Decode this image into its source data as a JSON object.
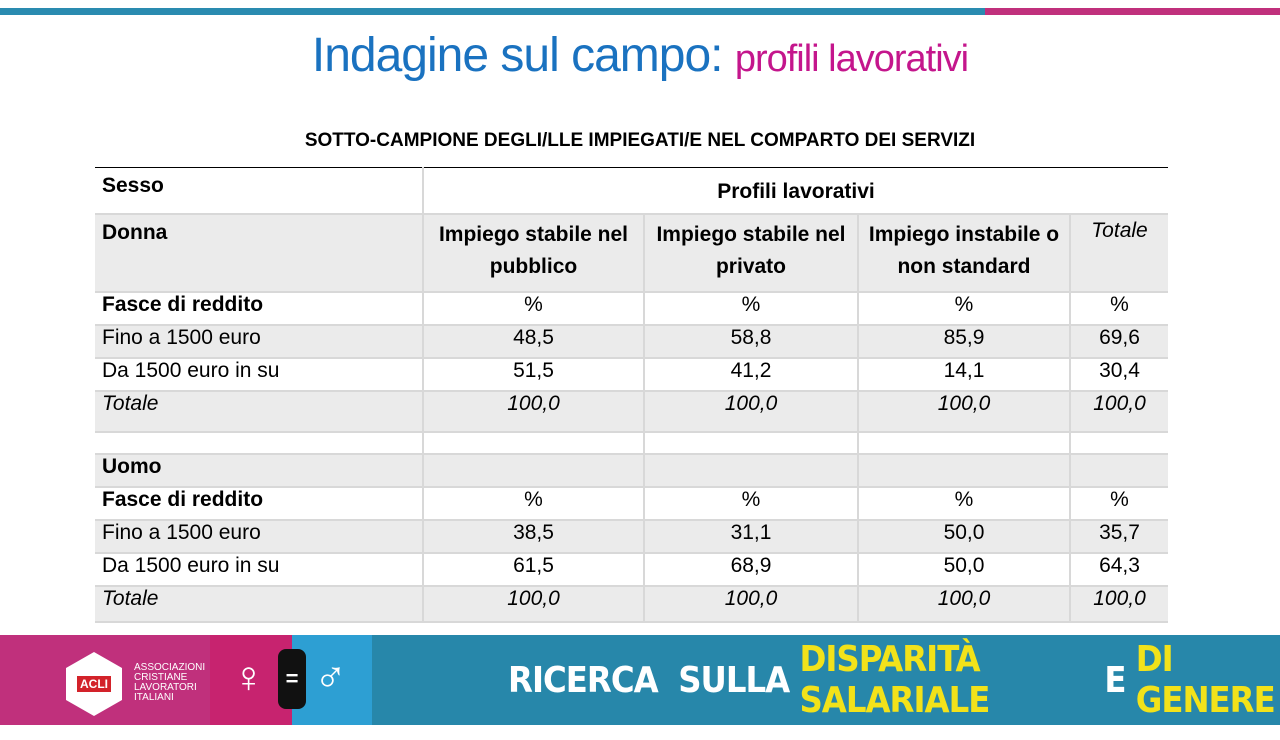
{
  "title": {
    "main": "Indagine sul campo:",
    "sub": "profili lavorativi"
  },
  "subtitle": "SOTTO-CAMPIONE DEGLI/LLE IMPIEGATI/E NEL COMPARTO DEI SERVIZI",
  "table": {
    "sesso_label": "Sesso",
    "group_header": "Profili lavorativi",
    "donna_label": "Donna",
    "uomo_label": "Uomo",
    "columns": [
      "Impiego stabile nel pubblico",
      "Impiego stabile nel privato",
      "Impiego instabile o non standard",
      "Totale"
    ],
    "fasce_label": "Fasce di reddito",
    "unit": "%",
    "donna_rows": [
      {
        "label": "Fino a 1500 euro",
        "values": [
          "48,5",
          "58,8",
          "85,9",
          "69,6"
        ]
      },
      {
        "label": "Da 1500 euro in su",
        "values": [
          "51,5",
          "41,2",
          "14,1",
          "30,4"
        ]
      },
      {
        "label": "Totale",
        "values": [
          "100,0",
          "100,0",
          "100,0",
          "100,0"
        ]
      }
    ],
    "uomo_rows": [
      {
        "label": "Fino a 1500 euro",
        "values": [
          "38,5",
          "31,1",
          "50,0",
          "35,7"
        ]
      },
      {
        "label": "Da 1500 euro in su",
        "values": [
          "61,5",
          "68,9",
          "50,0",
          "64,3"
        ]
      },
      {
        "label": "Totale",
        "values": [
          "100,0",
          "100,0",
          "100,0",
          "100,0"
        ]
      }
    ]
  },
  "footer": {
    "logo_text": "ACLI",
    "assoc_lines": [
      "ASSOCIAZIONI",
      "CRISTIANE",
      "LAVORATORI",
      "ITALIANI"
    ],
    "female_symbol": "♀",
    "equals": "=",
    "male_symbol": "♂",
    "banner": {
      "w1": "RICERCA",
      "w2": "SULLA",
      "w3": "DISPARITÀ SALARIALE",
      "w4": "E",
      "w5": "DI GENERE"
    }
  },
  "colors": {
    "title_blue": "#1a72c0",
    "title_pink": "#c4168c",
    "banner_teal": "#2787aa",
    "banner_yellow": "#f2e21a"
  }
}
